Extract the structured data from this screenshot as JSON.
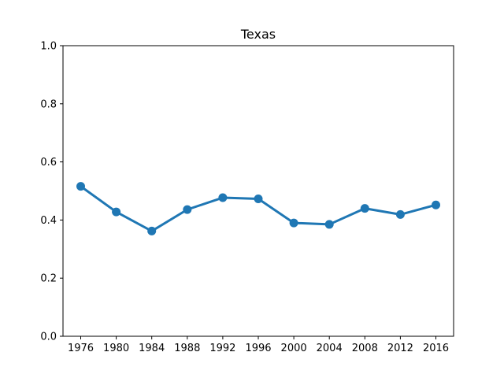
{
  "chart_data": {
    "type": "line",
    "title": "Texas",
    "xlabel": "",
    "ylabel": "",
    "x": [
      "1976",
      "1980",
      "1984",
      "1988",
      "1992",
      "1996",
      "2000",
      "2004",
      "2008",
      "2012",
      "2016"
    ],
    "series": [
      {
        "values": [
          0.516,
          0.428,
          0.362,
          0.436,
          0.477,
          0.473,
          0.39,
          0.385,
          0.44,
          0.419,
          0.452
        ],
        "color": "#1f77b4",
        "marker": "circle"
      }
    ],
    "ylim": [
      0.0,
      1.0
    ],
    "y_ticks": [
      "0.0",
      "0.2",
      "0.4",
      "0.6",
      "0.8",
      "1.0"
    ],
    "y_tick_values": [
      0.0,
      0.2,
      0.4,
      0.6,
      0.8,
      1.0
    ],
    "grid": false,
    "legend": "none"
  }
}
